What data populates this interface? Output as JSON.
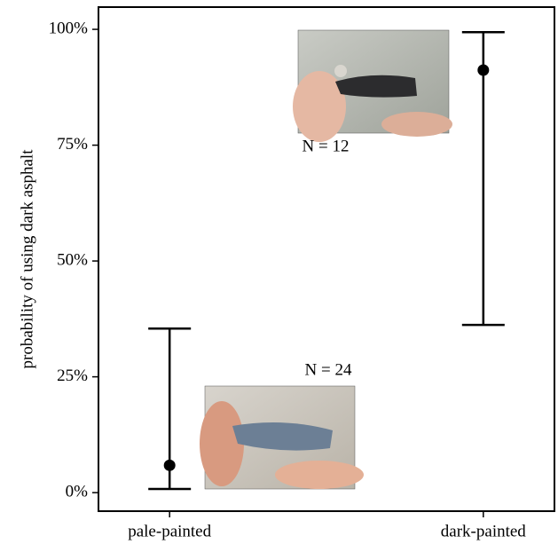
{
  "chart_data": {
    "type": "errorbar",
    "y_label": "probability of using dark asphalt",
    "categories": [
      "pale-painted",
      "dark-painted"
    ],
    "values": [
      5.9,
      91.2
    ],
    "lower": [
      0.8,
      36.2
    ],
    "upper": [
      35.4,
      99.4
    ],
    "color": "#000000",
    "ylim": [
      -4,
      104.8
    ],
    "yticks": [
      {
        "value": 0,
        "label": "0%"
      },
      {
        "value": 25,
        "label": "25%"
      },
      {
        "value": 50,
        "label": "50%"
      },
      {
        "value": 75,
        "label": "75%"
      },
      {
        "value": 100,
        "label": "100%"
      }
    ],
    "annotations": [
      "N = 24",
      "N = 12"
    ]
  }
}
